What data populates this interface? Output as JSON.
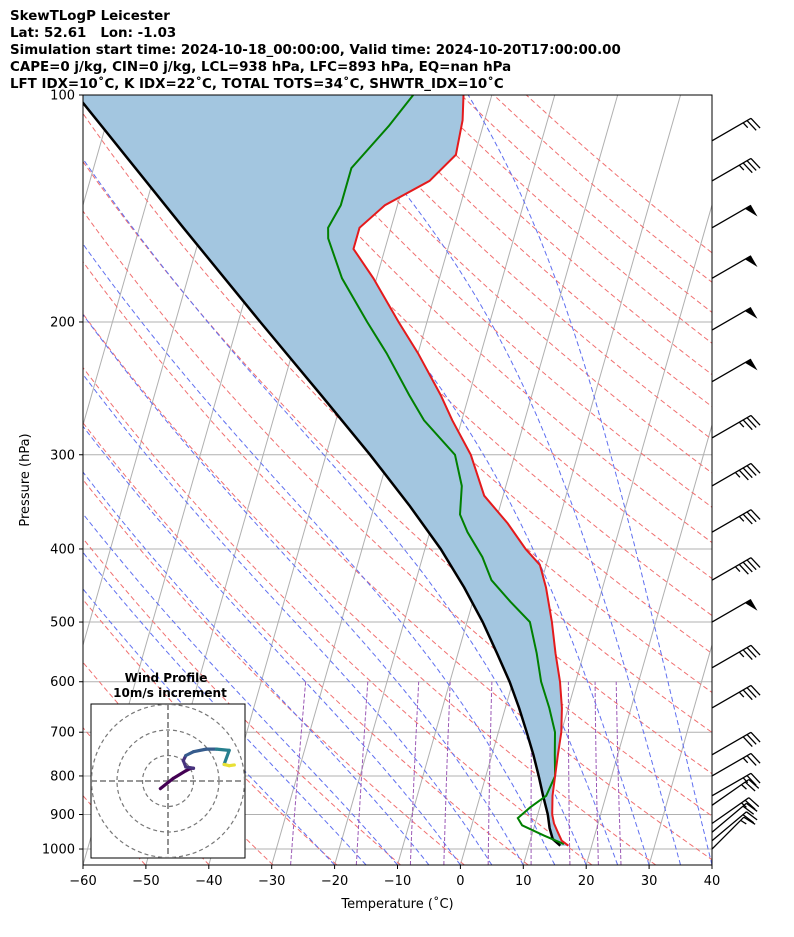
{
  "header": {
    "line1": "SkewTLogP Leicester",
    "line2": "Lat: 52.61   Lon: -1.03",
    "line3": "Simulation start time: 2024-10-18_00:00:00, Valid time: 2024-10-20T17:00:00.00",
    "line4": "CAPE=0 j/kg, CIN=0 j/kg, LCL=938 hPa, LFC=893 hPa, EQ=nan hPa",
    "line5": "LFT IDX=10˚C, K IDX=22˚C, TOTAL TOTS=34˚C, SHWTR_IDX=10˚C"
  },
  "chart_data": [
    {
      "type": "line",
      "title": "",
      "xlabel": "Temperature (˚C)",
      "ylabel": "Pressure (hPa)",
      "xlim": [
        -60,
        40
      ],
      "ylim": [
        1050,
        100
      ],
      "yscale": "log",
      "skew": true,
      "grid": true,
      "x_ticks": [
        "−60",
        "−50",
        "−40",
        "−30",
        "−20",
        "−10",
        "0",
        "10",
        "20",
        "30",
        "40"
      ],
      "y_ticks": [
        "100",
        "200",
        "300",
        "400",
        "500",
        "600",
        "700",
        "800",
        "900",
        "1000"
      ],
      "colors": {
        "temperature": "#e41a1c",
        "dewpoint": "#008000",
        "parcel": "#000000",
        "cape_fill": "#a3c6e0",
        "dry_adiabats": "#f07070",
        "moist_adiabats": "#6070f0",
        "mixing_ratio": "#9b59b6",
        "isotherms": "#b0b0b0"
      },
      "series": [],
      "temperature_profile": [
        [
          990,
          16.3
        ],
        [
          975,
          15.0
        ],
        [
          950,
          14.0
        ],
        [
          925,
          13.0
        ],
        [
          900,
          12.3
        ],
        [
          850,
          11.5
        ],
        [
          800,
          11.0
        ],
        [
          750,
          10.5
        ],
        [
          700,
          10.0
        ],
        [
          650,
          9.0
        ],
        [
          600,
          7.5
        ],
        [
          550,
          5.5
        ],
        [
          500,
          3.5
        ],
        [
          450,
          1.0
        ],
        [
          420,
          -1.0
        ],
        [
          400,
          -4.0
        ],
        [
          370,
          -8.0
        ],
        [
          340,
          -13.0
        ],
        [
          300,
          -17.0
        ],
        [
          270,
          -21.5
        ],
        [
          250,
          -24.5
        ],
        [
          220,
          -30.0
        ],
        [
          200,
          -34.5
        ],
        [
          175,
          -40.5
        ],
        [
          160,
          -45.0
        ],
        [
          150,
          -45.0
        ],
        [
          140,
          -42.0
        ],
        [
          130,
          -36.0
        ],
        [
          120,
          -33.0
        ],
        [
          108,
          -33.5
        ],
        [
          100,
          -34.5
        ]
      ],
      "dewpoint_profile": [
        [
          985,
          15.5
        ],
        [
          960,
          12.0
        ],
        [
          930,
          8.0
        ],
        [
          910,
          7.0
        ],
        [
          880,
          8.5
        ],
        [
          850,
          10.5
        ],
        [
          800,
          11.0
        ],
        [
          750,
          10.0
        ],
        [
          700,
          9.0
        ],
        [
          650,
          7.0
        ],
        [
          600,
          4.5
        ],
        [
          550,
          2.5
        ],
        [
          500,
          0.0
        ],
        [
          470,
          -4.0
        ],
        [
          440,
          -8.0
        ],
        [
          410,
          -10.5
        ],
        [
          380,
          -14.0
        ],
        [
          360,
          -16.0
        ],
        [
          330,
          -17.0
        ],
        [
          300,
          -19.5
        ],
        [
          270,
          -26.0
        ],
        [
          250,
          -29.5
        ],
        [
          220,
          -35.0
        ],
        [
          200,
          -39.5
        ],
        [
          175,
          -45.5
        ],
        [
          155,
          -49.5
        ],
        [
          150,
          -50.0
        ],
        [
          140,
          -49.0
        ],
        [
          125,
          -49.0
        ],
        [
          110,
          -45.0
        ],
        [
          100,
          -42.5
        ]
      ],
      "parcel_profile": [
        [
          990,
          15.0
        ],
        [
          970,
          13.5
        ],
        [
          938,
          12.5
        ],
        [
          900,
          11.6
        ],
        [
          850,
          10.0
        ],
        [
          800,
          8.4
        ],
        [
          750,
          6.6
        ],
        [
          700,
          4.5
        ],
        [
          650,
          2.2
        ],
        [
          600,
          -0.5
        ],
        [
          550,
          -3.8
        ],
        [
          500,
          -7.5
        ],
        [
          450,
          -12.0
        ],
        [
          400,
          -17.5
        ],
        [
          350,
          -24.5
        ],
        [
          300,
          -33.0
        ],
        [
          250,
          -43.5
        ],
        [
          200,
          -56.5
        ],
        [
          150,
          -73.0
        ],
        [
          100,
          -96.0
        ]
      ],
      "wind_barbs": [
        {
          "p": 1000,
          "speed_kt": 15,
          "dir": 225
        },
        {
          "p": 975,
          "speed_kt": 20,
          "dir": 230
        },
        {
          "p": 950,
          "speed_kt": 20,
          "dir": 230
        },
        {
          "p": 925,
          "speed_kt": 25,
          "dir": 235
        },
        {
          "p": 875,
          "speed_kt": 25,
          "dir": 235
        },
        {
          "p": 850,
          "speed_kt": 25,
          "dir": 240
        },
        {
          "p": 800,
          "speed_kt": 25,
          "dir": 240
        },
        {
          "p": 750,
          "speed_kt": 30,
          "dir": 240
        },
        {
          "p": 650,
          "speed_kt": 35,
          "dir": 240
        },
        {
          "p": 575,
          "speed_kt": 35,
          "dir": 240
        },
        {
          "p": 500,
          "speed_kt": 50,
          "dir": 240
        },
        {
          "p": 440,
          "speed_kt": 45,
          "dir": 240
        },
        {
          "p": 380,
          "speed_kt": 35,
          "dir": 240
        },
        {
          "p": 330,
          "speed_kt": 45,
          "dir": 240
        },
        {
          "p": 285,
          "speed_kt": 35,
          "dir": 240
        },
        {
          "p": 240,
          "speed_kt": 50,
          "dir": 240
        },
        {
          "p": 205,
          "speed_kt": 50,
          "dir": 240
        },
        {
          "p": 175,
          "speed_kt": 50,
          "dir": 240
        },
        {
          "p": 150,
          "speed_kt": 50,
          "dir": 240
        },
        {
          "p": 130,
          "speed_kt": 35,
          "dir": 240
        },
        {
          "p": 115,
          "speed_kt": 25,
          "dir": 240
        }
      ]
    },
    {
      "type": "line",
      "title": "Wind Profile",
      "subtitle": "10m/s increment",
      "rings_ms": [
        10,
        20,
        30
      ],
      "hodograph_uv": [
        [
          -3.0,
          -3.0
        ],
        [
          2.0,
          1.0
        ],
        [
          7.0,
          4.0
        ],
        [
          9.0,
          5.0
        ],
        [
          10.0,
          5.0
        ],
        [
          7.0,
          5.5
        ],
        [
          6.0,
          8.0
        ],
        [
          7.0,
          10.0
        ],
        [
          10.0,
          11.5
        ],
        [
          15.0,
          12.5
        ],
        [
          19.0,
          12.5
        ],
        [
          24.0,
          12.0
        ],
        [
          22.0,
          6.5
        ],
        [
          24.0,
          6.0
        ],
        [
          26.0,
          6.3
        ]
      ]
    }
  ]
}
